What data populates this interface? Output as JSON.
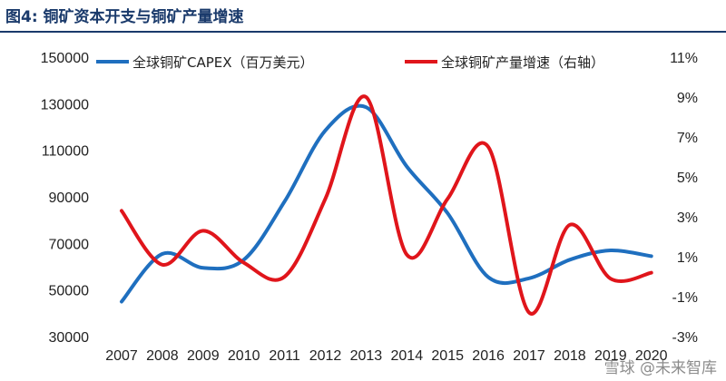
{
  "figure": {
    "title": "图4: 铜矿资本开支与铜矿产量增速",
    "watermark": "雪球 @未来智库"
  },
  "chart_data": {
    "type": "line",
    "title": "图4: 铜矿资本开支与铜矿产量增速",
    "categories": [
      "2007",
      "2008",
      "2009",
      "2010",
      "2011",
      "2012",
      "2013",
      "2014",
      "2015",
      "2016",
      "2017",
      "2018",
      "2019",
      "2020"
    ],
    "y_left": {
      "ylim": [
        30000,
        150000
      ],
      "ticks": [
        "30000",
        "50000",
        "70000",
        "90000",
        "110000",
        "130000",
        "150000"
      ]
    },
    "y_right": {
      "ylim": [
        -3,
        11
      ],
      "ticks": [
        "-3%",
        "-1%",
        "1%",
        "3%",
        "5%",
        "7%",
        "9%",
        "11%"
      ]
    },
    "series": [
      {
        "name": "全球铜矿CAPEX（百万美元）",
        "axis": "left",
        "color": "#1f6fbf",
        "values": [
          45000,
          65500,
          59500,
          63000,
          88000,
          118500,
          128500,
          103000,
          83000,
          55500,
          55000,
          63000,
          67000,
          64500
        ]
      },
      {
        "name": "全球铜矿产量增速（右轴）",
        "axis": "right",
        "color": "#e0151b",
        "values": [
          3.3,
          0.6,
          2.3,
          0.7,
          0.0,
          3.9,
          9.0,
          1.1,
          3.9,
          6.5,
          -1.8,
          2.6,
          -0.1,
          0.2
        ]
      }
    ],
    "legend_position": "top",
    "grid": false
  }
}
